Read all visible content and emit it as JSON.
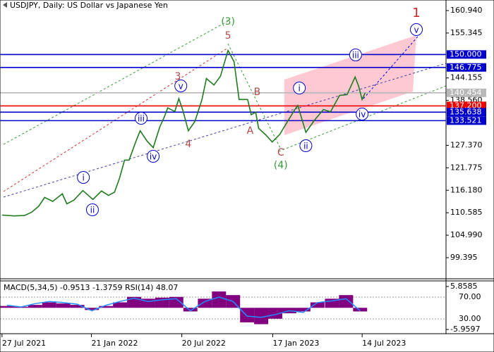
{
  "chart_data": [
    {
      "type": "line",
      "title": "USDJPY, Daily:  US Dollar vs Japanese Yen",
      "color": "#1f7a1f",
      "x": [
        "2021-07-27",
        "2021-08-20",
        "2021-09-10",
        "2021-09-24",
        "2021-10-08",
        "2021-10-20",
        "2021-11-05",
        "2021-11-24",
        "2021-12-03",
        "2021-12-17",
        "2022-01-04",
        "2022-01-24",
        "2022-02-10",
        "2022-02-24",
        "2022-03-08",
        "2022-03-18",
        "2022-03-28",
        "2022-04-06",
        "2022-04-20",
        "2022-04-28",
        "2022-05-12",
        "2022-05-24",
        "2022-06-06",
        "2022-06-15",
        "2022-06-22",
        "2022-07-06",
        "2022-07-14",
        "2022-07-22",
        "2022-08-02",
        "2022-08-15",
        "2022-08-29",
        "2022-09-07",
        "2022-09-22",
        "2022-10-05",
        "2022-10-20",
        "2022-11-01",
        "2022-11-11",
        "2022-11-28",
        "2022-12-05",
        "2022-12-14",
        "2022-12-20",
        "2023-01-03",
        "2023-01-16",
        "2023-01-31",
        "2023-02-14",
        "2023-03-01",
        "2023-03-08",
        "2023-03-24",
        "2023-04-10",
        "2023-04-28",
        "2023-05-12",
        "2023-05-30",
        "2023-06-14",
        "2023-06-30",
        "2023-07-07",
        "2023-07-14",
        "2023-07-20"
      ],
      "values": [
        110.0,
        109.8,
        109.9,
        110.7,
        112.2,
        114.4,
        113.4,
        115.3,
        112.8,
        113.7,
        116.1,
        113.9,
        116.0,
        114.9,
        115.7,
        119.2,
        123.7,
        123.7,
        128.5,
        131.0,
        128.4,
        126.8,
        131.9,
        134.4,
        136.7,
        135.8,
        139.0,
        136.1,
        131.0,
        133.3,
        138.7,
        144.0,
        142.4,
        144.6,
        151.0,
        148.2,
        138.8,
        138.8,
        135.0,
        135.6,
        131.6,
        130.0,
        128.2,
        130.1,
        133.0,
        136.1,
        137.3,
        130.6,
        133.6,
        136.3,
        135.7,
        139.8,
        140.0,
        144.4,
        142.1,
        138.8,
        140.454
      ],
      "xlim": [
        "2021-07-23",
        "2023-12-28"
      ],
      "xticks": [
        {
          "value": "2021-07-27",
          "label": "27 Jul 2021"
        },
        {
          "value": "2022-01-21",
          "label": "21 Jan 2022"
        },
        {
          "value": "2022-07-20",
          "label": "20 Jul 2022"
        },
        {
          "value": "2023-01-17",
          "label": "17 Jan 2023"
        },
        {
          "value": "2023-07-14",
          "label": "14 Jul 2023"
        }
      ],
      "ylim": [
        94.31,
        163.57
      ],
      "yticks": [
        {
          "value": 160.94,
          "label": "160.940"
        },
        {
          "value": 155.345,
          "label": "155.345"
        },
        {
          "value": 144.155,
          "label": "144.155"
        },
        {
          "value": 138.56,
          "label": "138.560"
        },
        {
          "value": 127.37,
          "label": "127.370"
        },
        {
          "value": 121.775,
          "label": "121.775"
        },
        {
          "value": 116.18,
          "label": "116.180"
        },
        {
          "value": 110.585,
          "label": "110.585"
        },
        {
          "value": 104.99,
          "label": "104.990"
        },
        {
          "value": 99.395,
          "label": "99.395"
        }
      ],
      "levels": [
        {
          "value": 150,
          "label": "150.000",
          "color": "#0000cd"
        },
        {
          "value": 146.775,
          "label": "146.775",
          "color": "#0000cd"
        },
        {
          "value": 140.454,
          "label": "140.454",
          "color": "#b8b8b8"
        },
        {
          "value": 137.2,
          "label": "137.200",
          "color": "#ee0000"
        },
        {
          "value": 135.638,
          "label": "135.638",
          "color": "#0000cd"
        },
        {
          "value": 133.521,
          "label": "133.521",
          "color": "#0000cd"
        }
      ],
      "annotations": [
        {
          "text": "(3)",
          "x": "2022-10-20",
          "y": 158.31,
          "color": "#3a9a3a",
          "circled": false
        },
        {
          "text": "5",
          "x": "2022-10-20",
          "y": 154.8,
          "color": "#b04848",
          "circled": false
        },
        {
          "text": "3",
          "x": "2022-07-12",
          "y": 144.63,
          "color": "#b04848",
          "circled": false
        },
        {
          "text": "v",
          "x": "2022-07-18",
          "y": 142.18,
          "color": "#0000cd",
          "circled": true
        },
        {
          "text": "iii",
          "x": "2022-04-30",
          "y": 134.11,
          "color": "#0000cd",
          "circled": true
        },
        {
          "text": "iv",
          "x": "2022-05-24",
          "y": 124.64,
          "color": "#0000cd",
          "circled": true
        },
        {
          "text": "4",
          "x": "2022-08-02",
          "y": 127.8,
          "color": "#b04848",
          "circled": false
        },
        {
          "text": "i",
          "x": "2022-01-05",
          "y": 119.38,
          "color": "#0000cd",
          "circled": true
        },
        {
          "text": "ii",
          "x": "2022-01-23",
          "y": 111.32,
          "color": "#0000cd",
          "circled": true
        },
        {
          "text": "A",
          "x": "2022-12-03",
          "y": 131.13,
          "color": "#b04848",
          "circled": false
        },
        {
          "text": "B",
          "x": "2022-12-17",
          "y": 140.78,
          "color": "#b04848",
          "circled": false
        },
        {
          "text": "C",
          "x": "2023-02-02",
          "y": 125.7,
          "color": "#b04848",
          "circled": false
        },
        {
          "text": "(4)",
          "x": "2023-02-02",
          "y": 122.54,
          "color": "#3a9a3a",
          "circled": false
        },
        {
          "text": "i",
          "x": "2023-03-11",
          "y": 141.65,
          "color": "#0000cd",
          "circled": true
        },
        {
          "text": "ii",
          "x": "2023-03-24",
          "y": 127.27,
          "color": "#0000cd",
          "circled": true
        },
        {
          "text": "iii",
          "x": "2023-07-01",
          "y": 149.89,
          "color": "#0000cd",
          "circled": true
        },
        {
          "text": "iv",
          "x": "2023-07-14",
          "y": 135.16,
          "color": "#0000cd",
          "circled": true
        },
        {
          "text": "v",
          "x": "2023-10-30",
          "y": 156.21,
          "color": "#0000cd",
          "circled": true
        },
        {
          "text": "1",
          "x": "2023-10-30",
          "y": 160.41,
          "color": "#cc2222",
          "circled": false
        }
      ]
    },
    {
      "type": "bar",
      "title": "MACD(5,34,5) -0.9513 -1.3759 RSI(14) 48.07",
      "x": [
        "2021-08-06",
        "2021-09-03",
        "2021-10-01",
        "2021-10-29",
        "2021-11-26",
        "2021-12-24",
        "2022-01-22",
        "2022-02-19",
        "2022-03-19",
        "2022-04-16",
        "2022-05-14",
        "2022-06-11",
        "2022-07-09",
        "2022-08-06",
        "2022-09-04",
        "2022-10-02",
        "2022-10-30",
        "2022-11-27",
        "2022-12-25",
        "2023-01-22",
        "2023-02-19",
        "2023-03-19",
        "2023-04-16",
        "2023-05-15",
        "2023-06-12",
        "2023-07-10"
      ],
      "series": [
        {
          "type": "bar",
          "color": "#800080",
          "values": [
            0.5,
            0.3,
            0.8,
            1.5,
            1.2,
            0.8,
            -0.6,
            0.5,
            1.5,
            3.0,
            2.5,
            2.8,
            3.0,
            -1.0,
            2.5,
            4.5,
            3.5,
            -4.0,
            -4.5,
            -3.0,
            -1.5,
            -1.0,
            1.5,
            2.5,
            3.5,
            -1.0
          ]
        },
        {
          "type": "line",
          "color": "#1e90ff",
          "axis": "y2",
          "values": [
            55,
            52,
            58,
            62,
            60,
            57,
            45,
            55,
            62,
            68,
            62,
            65,
            67,
            45,
            62,
            70,
            62,
            35,
            33,
            38,
            45,
            42,
            60,
            63,
            67,
            45
          ]
        }
      ],
      "xlim": [
        "2021-07-23",
        "2023-12-28"
      ],
      "ylim": [
        -7.12,
        7.21
      ],
      "yticks": [
        5.8585,
        -5.9597
      ],
      "y2lim": [
        2.9,
        98.4
      ],
      "y2ticks": [
        {
          "value": 70,
          "label": "70.00"
        },
        {
          "value": 30,
          "label": "30.00"
        }
      ]
    }
  ]
}
